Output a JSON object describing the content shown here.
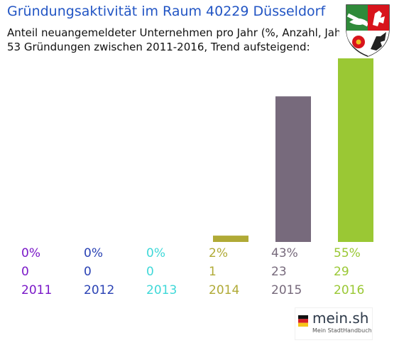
{
  "header": {
    "title": "Gründungsaktivität im Raum 40229 Düsseldorf",
    "subtitle_line1": "Anteil neuangemeldeter Unternehmen pro Jahr (%, Anzahl, Jahr)",
    "subtitle_line2": "53 Gründungen zwischen 2011-2016, Trend aufsteigend:"
  },
  "logo": {
    "name": "mein.sh",
    "tagline": "Mein StadtHandbuch"
  },
  "chart_data": {
    "type": "bar",
    "categories": [
      "2011",
      "2012",
      "2013",
      "2014",
      "2015",
      "2016"
    ],
    "values": [
      0,
      0,
      0,
      1,
      23,
      29
    ],
    "percent_labels": [
      "0%",
      "0%",
      "0%",
      "2%",
      "43%",
      "55%"
    ],
    "count_labels": [
      "0",
      "0",
      "0",
      "1",
      "23",
      "29"
    ],
    "colors": [
      "#7a18c8",
      "#2a42b4",
      "#3fd8d8",
      "#b0aa36",
      "#776a7c",
      "#9ac834"
    ],
    "ylim": [
      0,
      29
    ]
  }
}
